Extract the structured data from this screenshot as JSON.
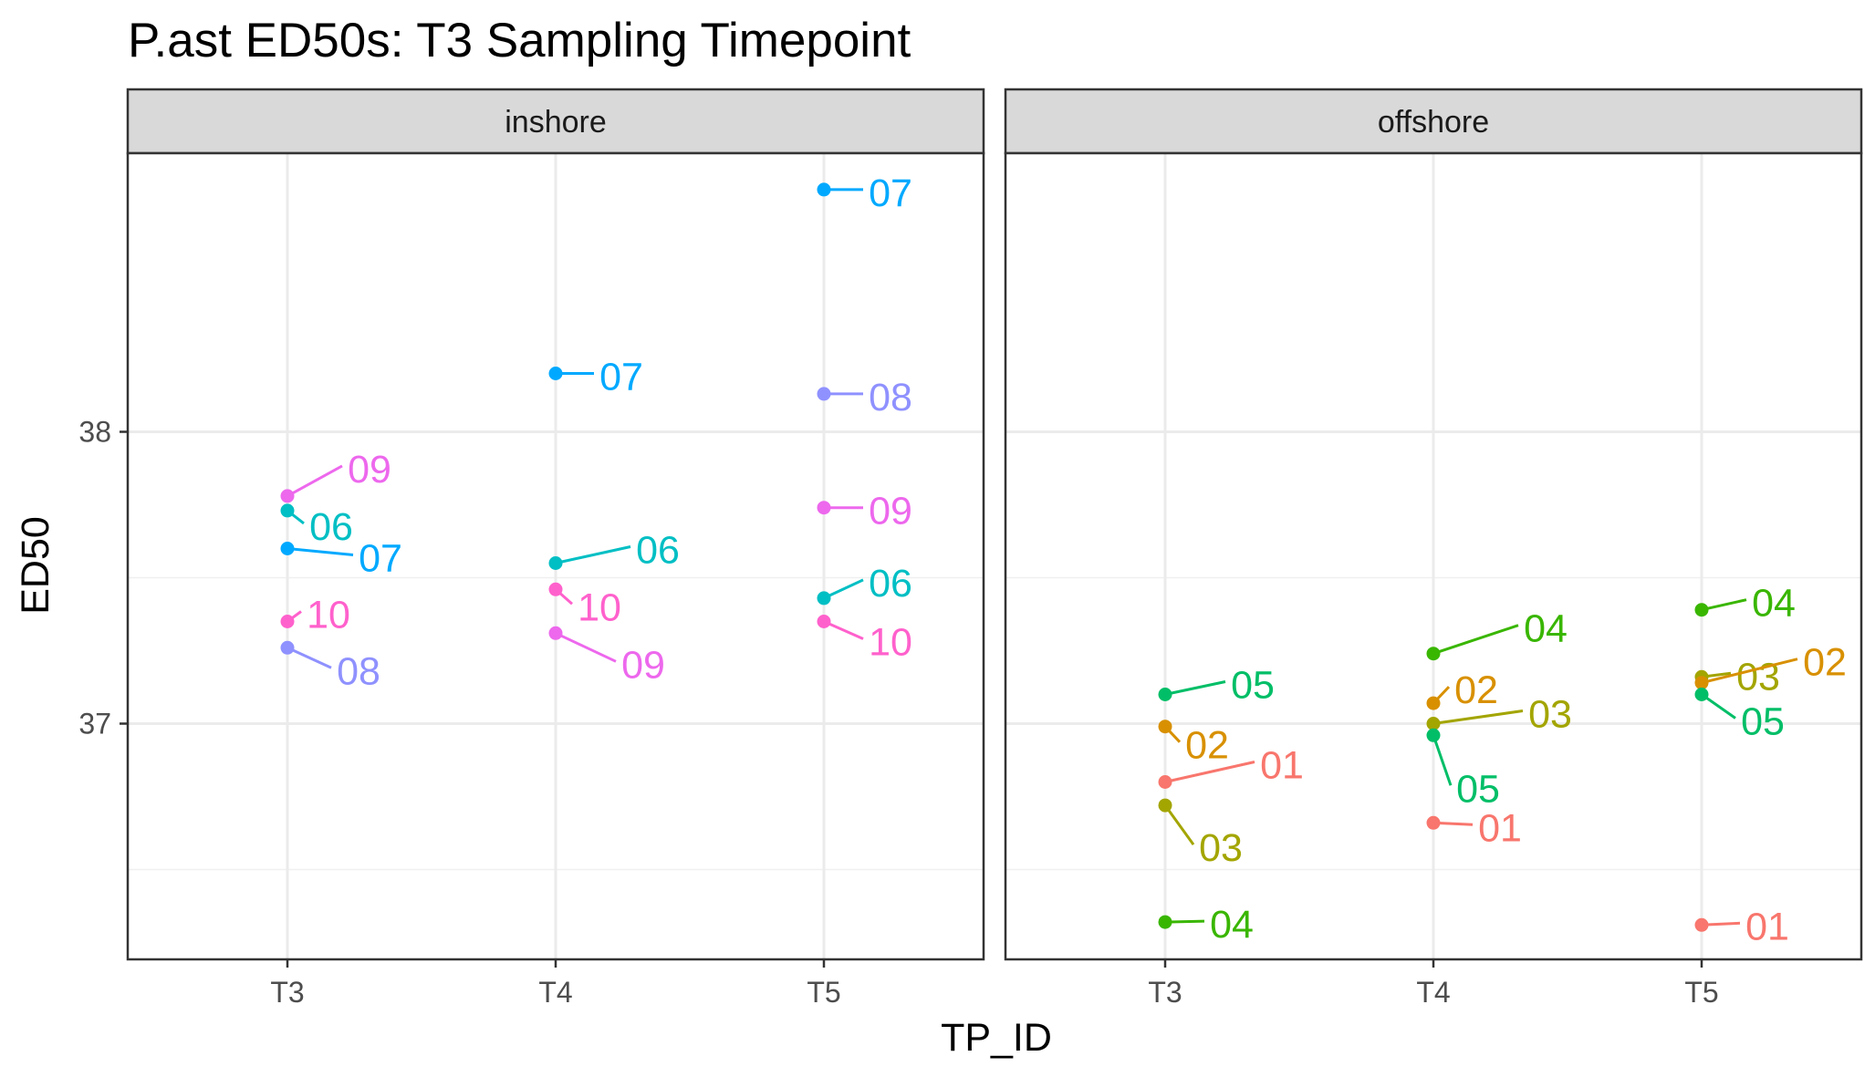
{
  "chart_data": {
    "type": "scatter",
    "title": "P.ast ED50s: T3 Sampling Timepoint",
    "xlabel": "TP_ID",
    "ylabel": "ED50",
    "x_categories": [
      "T3",
      "T4",
      "T5"
    ],
    "y_ticks": [
      "37",
      "38"
    ],
    "ylim": [
      36.2,
      38.8
    ],
    "grid": true,
    "legend": "none",
    "panels": [
      {
        "label": "inshore",
        "points": [
          {
            "x": "T3",
            "y": 37.78,
            "label": "09",
            "color": "#ed68ed"
          },
          {
            "x": "T3",
            "y": 37.73,
            "label": "06",
            "color": "#00bfc4"
          },
          {
            "x": "T3",
            "y": 37.6,
            "label": "07",
            "color": "#00a9ff"
          },
          {
            "x": "T3",
            "y": 37.35,
            "label": "10",
            "color": "#ff61cc"
          },
          {
            "x": "T3",
            "y": 37.26,
            "label": "08",
            "color": "#8f91ff"
          },
          {
            "x": "T4",
            "y": 38.2,
            "label": "07",
            "color": "#00a9ff"
          },
          {
            "x": "T4",
            "y": 37.55,
            "label": "06",
            "color": "#00bfc4"
          },
          {
            "x": "T4",
            "y": 37.46,
            "label": "10",
            "color": "#ff61cc"
          },
          {
            "x": "T4",
            "y": 37.31,
            "label": "09",
            "color": "#ed68ed"
          },
          {
            "x": "T5",
            "y": 38.83,
            "label": "07",
            "color": "#00a9ff"
          },
          {
            "x": "T5",
            "y": 38.13,
            "label": "08",
            "color": "#8f91ff"
          },
          {
            "x": "T5",
            "y": 37.74,
            "label": "09",
            "color": "#ed68ed"
          },
          {
            "x": "T5",
            "y": 37.43,
            "label": "06",
            "color": "#00bfc4"
          },
          {
            "x": "T5",
            "y": 37.35,
            "label": "10",
            "color": "#ff61cc"
          }
        ]
      },
      {
        "label": "offshore",
        "points": [
          {
            "x": "T3",
            "y": 37.1,
            "label": "05",
            "color": "#00be67"
          },
          {
            "x": "T3",
            "y": 36.99,
            "label": "02",
            "color": "#d89000"
          },
          {
            "x": "T3",
            "y": 36.8,
            "label": "01",
            "color": "#f8766d"
          },
          {
            "x": "T3",
            "y": 36.72,
            "label": "03",
            "color": "#a3a500"
          },
          {
            "x": "T3",
            "y": 36.32,
            "label": "04",
            "color": "#39b600"
          },
          {
            "x": "T4",
            "y": 37.24,
            "label": "04",
            "color": "#39b600"
          },
          {
            "x": "T4",
            "y": 37.07,
            "label": "02",
            "color": "#d89000"
          },
          {
            "x": "T4",
            "y": 37.0,
            "label": "03",
            "color": "#a3a500"
          },
          {
            "x": "T4",
            "y": 36.96,
            "label": "05",
            "color": "#00be67"
          },
          {
            "x": "T4",
            "y": 36.66,
            "label": "01",
            "color": "#f8766d"
          },
          {
            "x": "T5",
            "y": 37.39,
            "label": "04",
            "color": "#39b600"
          },
          {
            "x": "T5",
            "y": 37.16,
            "label": "03",
            "color": "#a3a500"
          },
          {
            "x": "T5",
            "y": 37.14,
            "label": "02",
            "color": "#d89000"
          },
          {
            "x": "T5",
            "y": 37.1,
            "label": "05",
            "color": "#00be67"
          },
          {
            "x": "T5",
            "y": 36.31,
            "label": "01",
            "color": "#f8766d"
          }
        ]
      }
    ]
  }
}
